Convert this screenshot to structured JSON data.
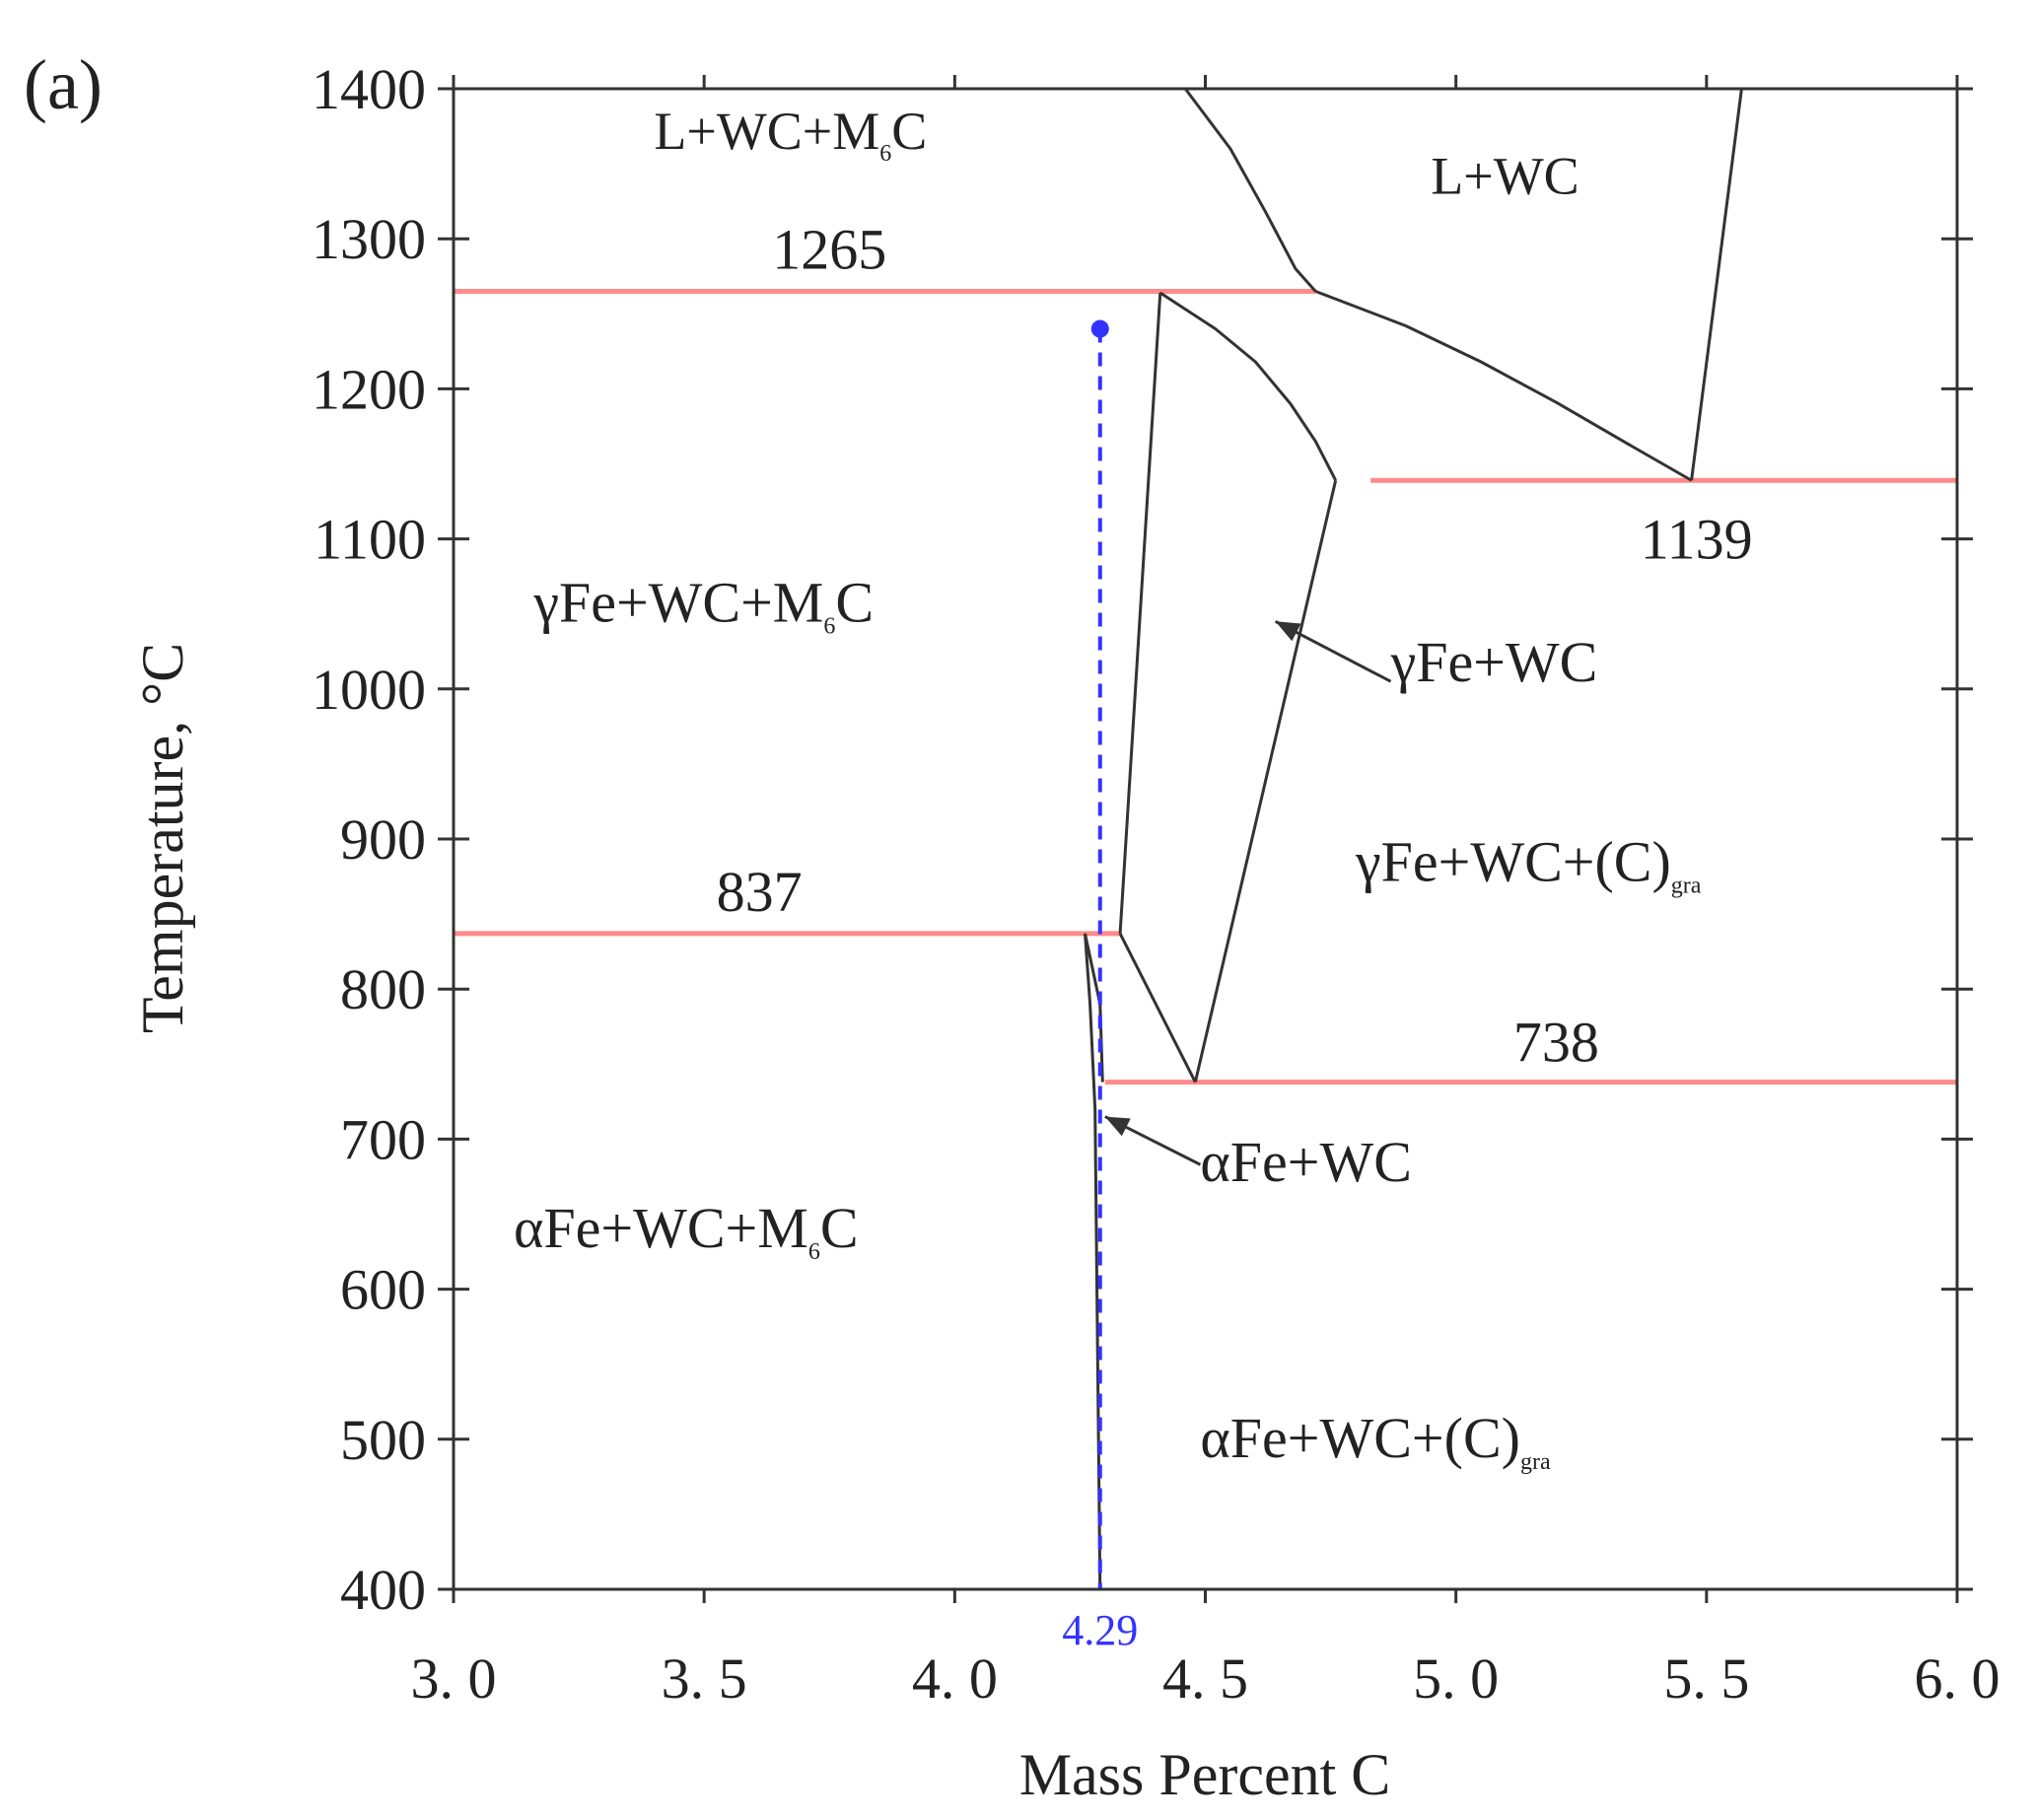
{
  "chart_data": {
    "type": "line",
    "panel_label": "(a)",
    "xlabel": "Mass Percent C",
    "ylabel": "Temperature, °C",
    "xlim": [
      3.0,
      6.0
    ],
    "ylim": [
      400,
      1400
    ],
    "x_ticks": [
      3.0,
      3.5,
      4.0,
      4.5,
      5.0,
      5.5,
      6.0
    ],
    "x_tick_labels": [
      "3. 0",
      "3. 5",
      "4. 0",
      "4. 5",
      "5. 0",
      "5. 5",
      "6. 0"
    ],
    "y_ticks": [
      400,
      500,
      600,
      700,
      800,
      900,
      1000,
      1100,
      1200,
      1300,
      1400
    ],
    "y_tick_labels": [
      "400",
      "500",
      "600",
      "700",
      "800",
      "900",
      "1000",
      "1100",
      "1200",
      "1300",
      "1400"
    ],
    "colors": {
      "boundary": "#333333",
      "isotherm": "#ff8a8a",
      "marker": "#3333ff",
      "axis": "#333333"
    },
    "isotherms": [
      {
        "label": "1265",
        "y": 1265,
        "x": [
          3.0,
          4.72
        ],
        "label_x": 3.75,
        "label_y": 1280
      },
      {
        "label": "1139",
        "y": 1139,
        "x": [
          4.83,
          6.0
        ],
        "label_x": 5.48,
        "label_y": 1087
      },
      {
        "label": "837",
        "y": 837,
        "x": [
          3.0,
          4.33
        ],
        "label_x": 3.61,
        "label_y": 852
      },
      {
        "label": "738",
        "y": 738,
        "x": [
          4.3,
          6.0
        ],
        "label_x": 5.2,
        "label_y": 752
      }
    ],
    "boundaries": [
      {
        "name": "liquidus-left",
        "points": [
          [
            4.46,
            1400
          ],
          [
            4.55,
            1360
          ],
          [
            4.62,
            1318
          ],
          [
            4.68,
            1280
          ],
          [
            4.72,
            1265
          ]
        ]
      },
      {
        "name": "liquidus-right",
        "points": [
          [
            5.57,
            1400
          ],
          [
            5.47,
            1139
          ]
        ]
      },
      {
        "name": "l-wc-lower",
        "points": [
          [
            4.72,
            1265
          ],
          [
            4.9,
            1242
          ],
          [
            5.05,
            1218
          ],
          [
            5.2,
            1191
          ],
          [
            5.35,
            1162
          ],
          [
            5.47,
            1139
          ]
        ]
      },
      {
        "name": "gamma-wc-top",
        "points": [
          [
            4.41,
            1264
          ],
          [
            4.52,
            1240
          ],
          [
            4.6,
            1218
          ],
          [
            4.67,
            1190
          ],
          [
            4.72,
            1165
          ],
          [
            4.76,
            1139
          ]
        ]
      },
      {
        "name": "gamma-wc-left",
        "points": [
          [
            4.41,
            1264
          ],
          [
            4.33,
            837
          ]
        ]
      },
      {
        "name": "gamma-wc-right",
        "points": [
          [
            4.76,
            1139
          ],
          [
            4.48,
            738
          ]
        ]
      },
      {
        "name": "gamma-wc-bottom-left",
        "points": [
          [
            4.33,
            837
          ],
          [
            4.48,
            738
          ]
        ]
      },
      {
        "name": "alpha-wc-sliver-left",
        "points": [
          [
            4.26,
            837
          ],
          [
            4.27,
            790
          ],
          [
            4.28,
            720
          ],
          [
            4.29,
            400
          ]
        ]
      },
      {
        "name": "alpha-wc-sliver-right",
        "points": [
          [
            4.26,
            837
          ],
          [
            4.29,
            790
          ],
          [
            4.295,
            738
          ]
        ]
      }
    ],
    "marker": {
      "label": "4.29",
      "x": 4.29,
      "y_point": 1240,
      "y_end": 400
    },
    "regions": [
      {
        "text": "L+WC+M",
        "sub": "6",
        "tail": "C",
        "x": 3.4,
        "y": 1360,
        "size": "sm"
      },
      {
        "text": "L+WC",
        "sub": "",
        "tail": "",
        "x": 4.95,
        "y": 1330,
        "size": "sm"
      },
      {
        "text": "γFe+WC+M",
        "sub": "6",
        "tail": "C",
        "x": 3.16,
        "y": 1045,
        "size": "lg"
      },
      {
        "text": "γFe+WC",
        "sub": "",
        "tail": "",
        "x": 4.87,
        "y": 1005,
        "size": "lg"
      },
      {
        "text": "γFe+WC+(C)",
        "sub": "gra",
        "tail": "",
        "x": 4.8,
        "y": 872,
        "size": "lg"
      },
      {
        "text": "αFe+WC",
        "sub": "",
        "tail": "",
        "x": 4.49,
        "y": 672,
        "size": "lg"
      },
      {
        "text": "αFe+WC+M",
        "sub": "6",
        "tail": "C",
        "x": 3.12,
        "y": 628,
        "size": "lg"
      },
      {
        "text": "αFe+WC+(C)",
        "sub": "gra",
        "tail": "",
        "x": 4.49,
        "y": 488,
        "size": "lg"
      }
    ],
    "arrows": [
      {
        "name": "arrow-gamma-wc",
        "from": [
          4.87,
          1005
        ],
        "to": [
          4.64,
          1045
        ]
      },
      {
        "name": "arrow-alpha-wc",
        "from": [
          4.49,
          683
        ],
        "to": [
          4.3,
          715
        ]
      }
    ]
  }
}
